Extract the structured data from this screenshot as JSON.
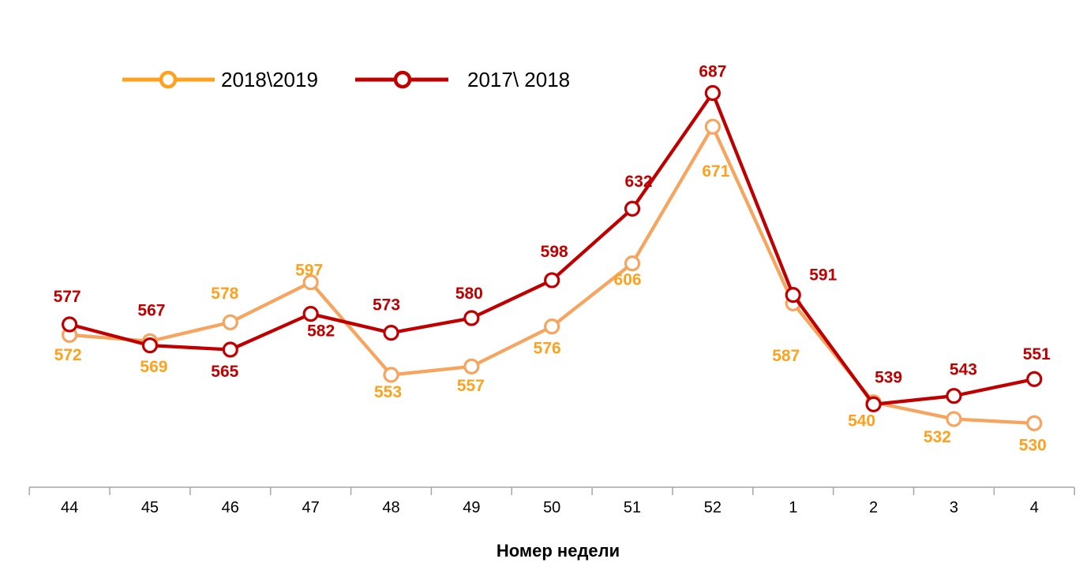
{
  "chart_data": {
    "type": "line",
    "categories": [
      "44",
      "45",
      "46",
      "47",
      "48",
      "49",
      "50",
      "51",
      "52",
      "1",
      "2",
      "3",
      "4"
    ],
    "xlabel": "Номер недели",
    "ylabel": "",
    "ylim": [
      500,
      700
    ],
    "grid": false,
    "legend_position": "top-left",
    "axis_color": "#a6a6a6",
    "text_color": "#000000",
    "series": [
      {
        "name": "2018\\2019",
        "line_color": "#f6a45e",
        "label_color": "#ffa11e",
        "values": [
          572,
          569,
          578,
          597,
          553,
          557,
          576,
          606,
          671,
          587,
          540,
          532,
          530
        ],
        "label_offsets": [
          [
            -2,
            25
          ],
          [
            5,
            32
          ],
          [
            -7,
            -37
          ],
          [
            -2,
            -16
          ],
          [
            -4,
            21
          ],
          [
            -1,
            24
          ],
          [
            -6,
            27
          ],
          [
            -6,
            20
          ],
          [
            4,
            56
          ],
          [
            -9,
            66
          ],
          [
            -15,
            23
          ],
          [
            -21,
            22
          ],
          [
            -2,
            27
          ]
        ]
      },
      {
        "name": "2017\\ 2018",
        "line_color": "#c00000",
        "label_color": "#c00000",
        "values": [
          577,
          567,
          565,
          582,
          573,
          580,
          598,
          632,
          687,
          591,
          539,
          543,
          551
        ],
        "label_offsets": [
          [
            -3,
            -36
          ],
          [
            2,
            -45
          ],
          [
            -7,
            27
          ],
          [
            13,
            21
          ],
          [
            -6,
            -36
          ],
          [
            -3,
            -32
          ],
          [
            3,
            -37
          ],
          [
            8,
            -35
          ],
          [
            0,
            -28
          ],
          [
            38,
            -26
          ],
          [
            19,
            -35
          ],
          [
            12,
            -34
          ],
          [
            3,
            -32
          ]
        ]
      }
    ]
  }
}
